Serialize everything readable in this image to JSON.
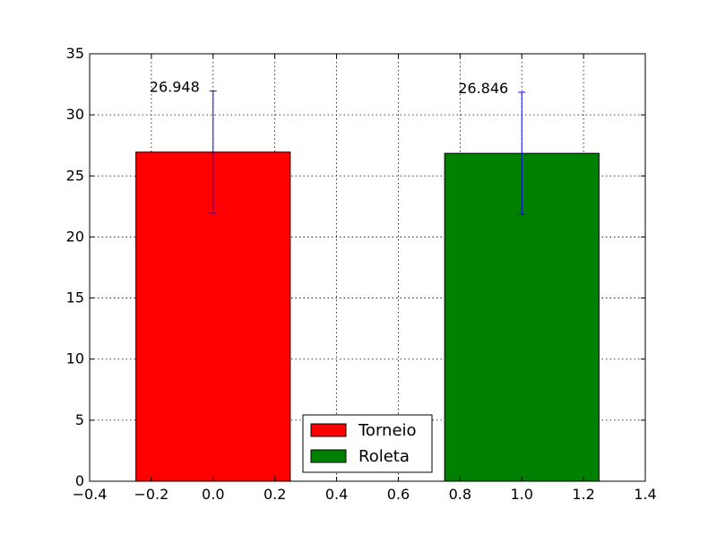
{
  "chart_data": {
    "type": "bar",
    "title": "",
    "xlabel": "",
    "ylabel": "",
    "xlim": [
      -0.4,
      1.4
    ],
    "ylim": [
      0,
      35
    ],
    "xticks": [
      -0.4,
      -0.2,
      0.0,
      0.2,
      0.4,
      0.6,
      0.8,
      1.0,
      1.2,
      1.4
    ],
    "xtick_labels": [
      "−0.4",
      "−0.2",
      "0.0",
      "0.2",
      "0.4",
      "0.6",
      "0.8",
      "1.0",
      "1.2",
      "1.4"
    ],
    "yticks": [
      0,
      5,
      10,
      15,
      20,
      25,
      30,
      35
    ],
    "ytick_labels": [
      "0",
      "5",
      "10",
      "15",
      "20",
      "25",
      "30",
      "35"
    ],
    "grid": true,
    "legend": {
      "position": "lower-center"
    },
    "series": [
      {
        "name": "Torneio",
        "x": 0.0,
        "value": 26.948,
        "width": 0.5,
        "error": 5.0,
        "color": "#ff0000",
        "label": "26.948"
      },
      {
        "name": "Roleta",
        "x": 1.0,
        "value": 26.846,
        "width": 0.5,
        "error": 5.0,
        "color": "#008000",
        "label": "26.846"
      }
    ],
    "errorbar_color": "#0000ff"
  }
}
